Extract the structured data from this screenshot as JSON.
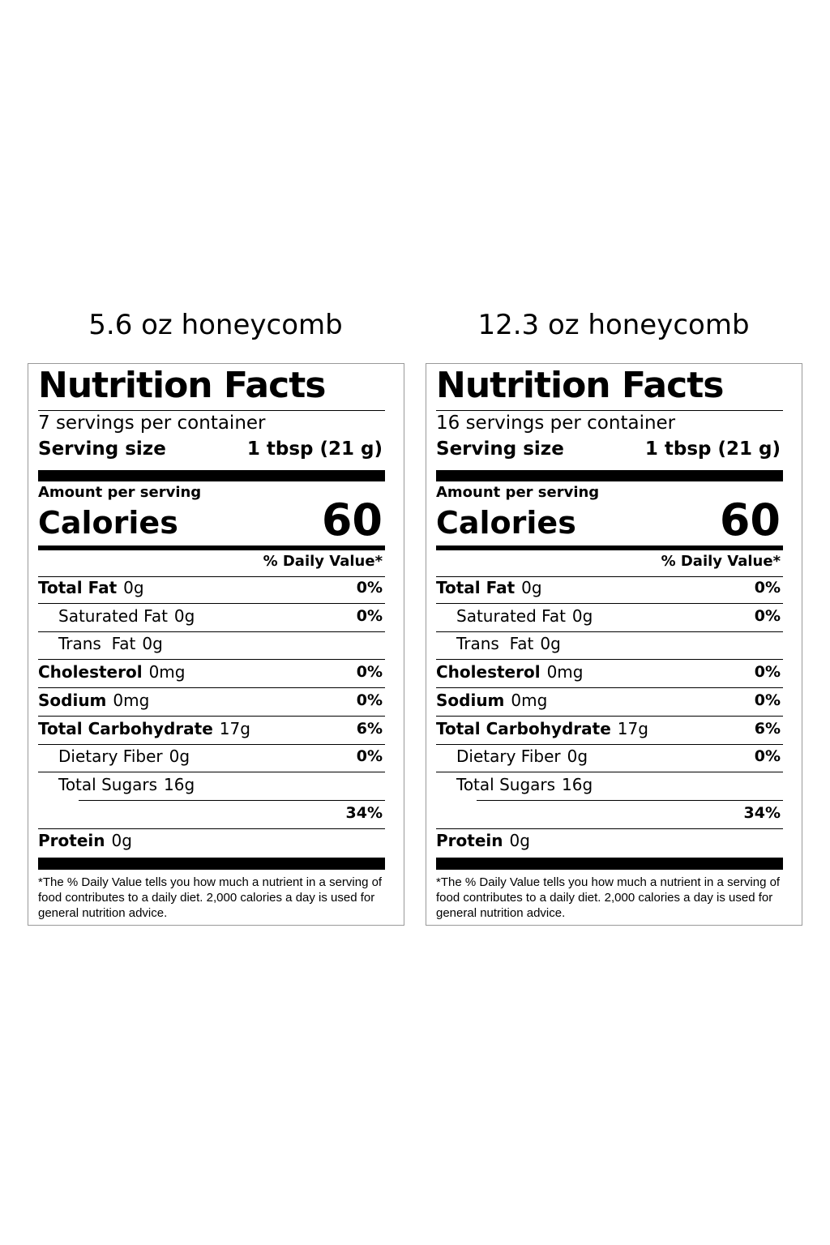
{
  "labels": [
    {
      "caption": "5.6 oz honeycomb",
      "title": "Nutrition Facts",
      "servings": "7 servings per container",
      "serving_size_label": "Serving size",
      "serving_size": "1 tbsp (21 g)",
      "amount_per_serving": "Amount per serving",
      "calories_label": "Calories",
      "calories": "60",
      "daily_value_header": "% Daily Value*",
      "rows": [
        {
          "name": "Total Fat",
          "amount": "0g",
          "dv": "0%"
        },
        {
          "name": "Saturated Fat",
          "amount": "0g",
          "dv": "0%"
        },
        {
          "name": "Trans  Fat",
          "amount": "0g"
        },
        {
          "name": "Cholesterol",
          "amount": "0mg",
          "dv": "0%"
        },
        {
          "name": "Sodium",
          "amount": "0mg",
          "dv": "0%"
        },
        {
          "name": "Total Carbohydrate",
          "amount": "17g",
          "dv": "6%"
        },
        {
          "name": "Dietary Fiber",
          "amount": "0g",
          "dv": "0%"
        },
        {
          "name": "Total Sugars",
          "amount": "16g"
        },
        {
          "dv": "34%"
        },
        {
          "name": "Protein",
          "amount": "0g"
        }
      ],
      "footnote": "*The % Daily Value tells you how much a nutrient in a serving of food contributes to a daily diet. 2,000 calories a day is used for general nutrition advice."
    },
    {
      "caption": "12.3 oz honeycomb",
      "title": "Nutrition Facts",
      "servings": "16 servings per container",
      "serving_size_label": "Serving size",
      "serving_size": "1 tbsp (21 g)",
      "amount_per_serving": "Amount per serving",
      "calories_label": "Calories",
      "calories": "60",
      "daily_value_header": "% Daily Value*",
      "rows": [
        {
          "name": "Total Fat",
          "amount": "0g",
          "dv": "0%"
        },
        {
          "name": "Saturated Fat",
          "amount": "0g",
          "dv": "0%"
        },
        {
          "name": "Trans  Fat",
          "amount": "0g"
        },
        {
          "name": "Cholesterol",
          "amount": "0mg",
          "dv": "0%"
        },
        {
          "name": "Sodium",
          "amount": "0mg",
          "dv": "0%"
        },
        {
          "name": "Total Carbohydrate",
          "amount": "17g",
          "dv": "6%"
        },
        {
          "name": "Dietary Fiber",
          "amount": "0g",
          "dv": "0%"
        },
        {
          "name": "Total Sugars",
          "amount": "16g"
        },
        {
          "dv": "34%"
        },
        {
          "name": "Protein",
          "amount": "0g"
        }
      ],
      "footnote": "*The % Daily Value tells you how much a nutrient in a serving of food contributes to a daily diet. 2,000 calories a day is used for general nutrition advice."
    }
  ]
}
